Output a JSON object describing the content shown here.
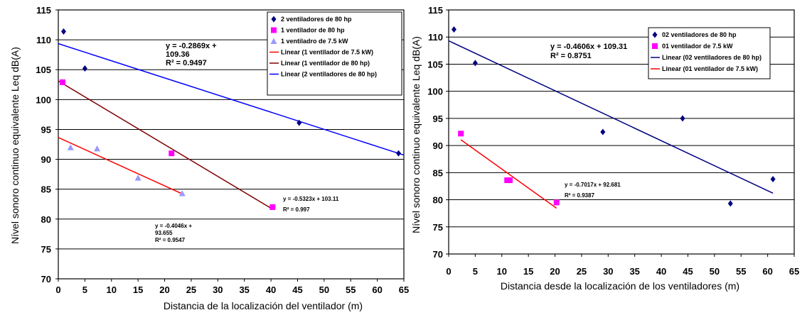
{
  "chart_data": [
    {
      "type": "scatter",
      "ylabel": "Nível sonoro continuo equivalente Leq  dB(A)",
      "xlabel": "Distancia de la localización del ventilador (m)",
      "xlim": [
        0,
        65
      ],
      "ylim": [
        70,
        115
      ],
      "x_ticks": [
        "0",
        "5",
        "10",
        "15",
        "20",
        "25",
        "30",
        "35",
        "40",
        "45",
        "50",
        "55",
        "60",
        "65"
      ],
      "y_ticks": [
        "70",
        "75",
        "80",
        "85",
        "90",
        "95",
        "100",
        "105",
        "110",
        "115"
      ],
      "grid": true,
      "legend_position": "top-right",
      "series": [
        {
          "name": "2 ventiladores de 80 hp",
          "marker": "diamond",
          "color": "#000080",
          "points": [
            [
              1,
              111.4
            ],
            [
              5,
              105.2
            ],
            [
              45.3,
              96.1
            ],
            [
              64,
              91.0
            ]
          ]
        },
        {
          "name": "1 ventilador de 80 hp",
          "marker": "square",
          "color": "#ff00ff",
          "points": [
            [
              0.8,
              102.9
            ],
            [
              21.3,
              91.0
            ],
            [
              40.3,
              82.0
            ]
          ]
        },
        {
          "name": "1 ventiladro de 7.5 kW",
          "marker": "triangle",
          "color": "#9999ff",
          "points": [
            [
              2.3,
              92.0
            ],
            [
              7.3,
              91.8
            ],
            [
              15,
              86.9
            ],
            [
              23.3,
              84.3
            ]
          ]
        }
      ],
      "trendlines": [
        {
          "name": "Linear (1 ventilador de 7.5 kW)",
          "color": "#ff0000",
          "slope": -0.4046,
          "intercept": 93.655,
          "x_range": [
            0,
            23.3
          ]
        },
        {
          "name": "Linear (1 ventilador de 80 hp)",
          "color": "#800000",
          "slope": -0.5323,
          "intercept": 103.11,
          "x_range": [
            0,
            40.3
          ]
        },
        {
          "name": "Linear (2 ventiladores de 80 hp)",
          "color": "#0000ff",
          "slope": -0.2869,
          "intercept": 109.36,
          "x_range": [
            0,
            65
          ]
        }
      ],
      "annotations": [
        {
          "lines": [
            "y = -0.2869x +",
            "109.36",
            "R² = 0.9497"
          ]
        },
        {
          "lines": [
            "y = -0.5323x + 103.11",
            "R² = 0.997"
          ]
        },
        {
          "lines": [
            "y = -0.4046x +",
            "93.655",
            "R² = 0.9547"
          ]
        }
      ]
    },
    {
      "type": "scatter",
      "ylabel": "Nível sonoro continuo equivalente Leq dB(A)",
      "xlabel": "Distancia desde la localización de los ventiladores (m)",
      "xlim": [
        0,
        65
      ],
      "ylim": [
        70,
        115
      ],
      "x_ticks": [
        "0",
        "5",
        "10",
        "15",
        "20",
        "25",
        "30",
        "35",
        "40",
        "45",
        "50",
        "55",
        "60",
        "65"
      ],
      "y_ticks": [
        "70",
        "75",
        "80",
        "85",
        "90",
        "95",
        "100",
        "105",
        "110",
        "115"
      ],
      "grid": true,
      "legend_position": "top-right",
      "series": [
        {
          "name": "02 ventiladores de 80 hp",
          "marker": "diamond",
          "color": "#000080",
          "points": [
            [
              1,
              111.4
            ],
            [
              5,
              105.2
            ],
            [
              29,
              92.5
            ],
            [
              44,
              95.0
            ],
            [
              53,
              79.3
            ],
            [
              61,
              83.8
            ]
          ]
        },
        {
          "name": "01 ventilador de 7.5 kW",
          "marker": "square",
          "color": "#ff00ff",
          "points": [
            [
              2.3,
              92.2
            ],
            [
              11,
              83.6
            ],
            [
              11.5,
              83.6
            ],
            [
              20.3,
              79.5
            ]
          ]
        }
      ],
      "trendlines": [
        {
          "name": "Linear (02 ventiladores de 80 hp)",
          "color": "#000080",
          "slope": -0.4606,
          "intercept": 109.31,
          "x_range": [
            0,
            61
          ]
        },
        {
          "name": "Linear (01 ventilador de 7.5 kW)",
          "color": "#ff0000",
          "slope": -0.7017,
          "intercept": 92.681,
          "x_range": [
            2.3,
            20.3
          ]
        }
      ],
      "annotations": [
        {
          "lines": [
            "y = -0.4606x + 109.31",
            "R² = 0.8751"
          ]
        },
        {
          "lines": [
            "y = -0.7017x + 92.681",
            "R² = 0.9387"
          ]
        }
      ]
    }
  ]
}
